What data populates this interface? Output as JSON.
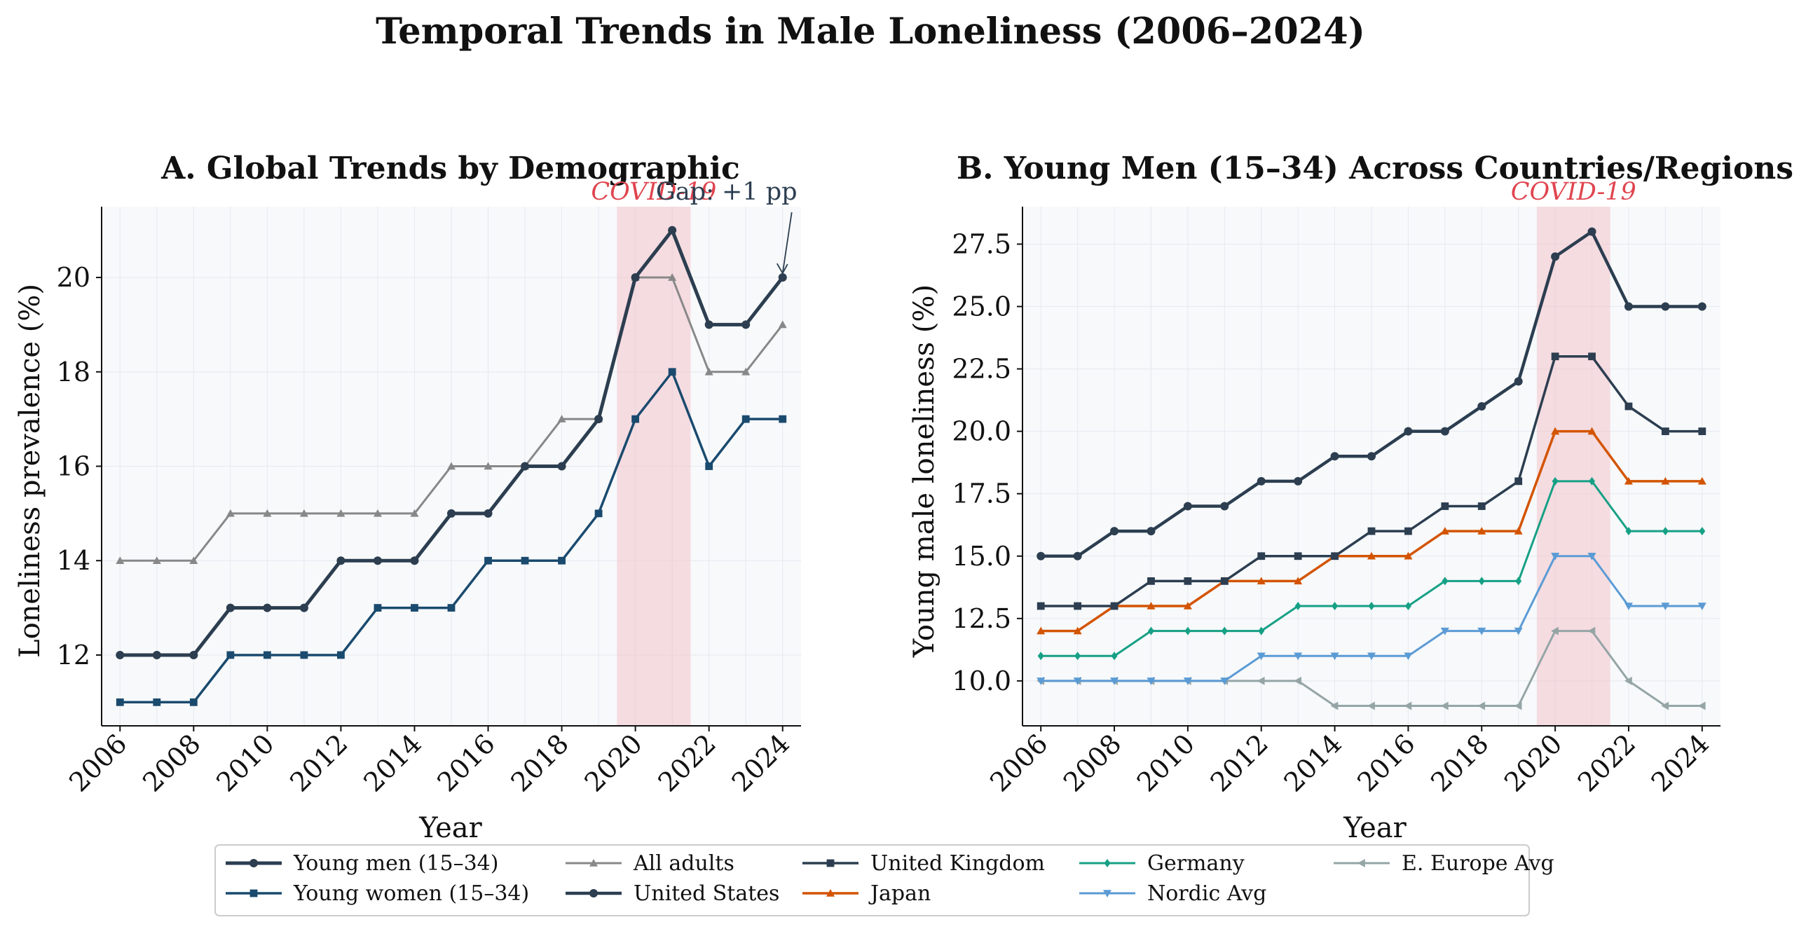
{
  "figure_title": "Temporal Trends in Male Loneliness (2006–2024)",
  "chart_data": [
    {
      "type": "line",
      "panel": "A",
      "title": "A. Global Trends by Demographic",
      "xlabel": "Year",
      "ylabel": "Loneliness prevalence (%)",
      "xlim": [
        2005.5,
        2024.5
      ],
      "ylim": [
        10.5,
        21.5
      ],
      "xticks": [
        2006,
        2008,
        2010,
        2012,
        2014,
        2016,
        2018,
        2020,
        2022,
        2024
      ],
      "yticks": [
        12,
        14,
        16,
        18,
        20
      ],
      "ytick_labels": [
        "12",
        "14",
        "16",
        "18",
        "20"
      ],
      "grid": true,
      "shaded_region": {
        "x0": 2019.5,
        "x1": 2021.5,
        "label": "COVID-19",
        "color": "#f3b4bd"
      },
      "annotation": {
        "text": "Gap: +1 pp",
        "x": 2024,
        "y": 20
      },
      "x": [
        2006,
        2007,
        2008,
        2009,
        2010,
        2011,
        2012,
        2013,
        2014,
        2015,
        2016,
        2017,
        2018,
        2019,
        2020,
        2021,
        2022,
        2023,
        2024
      ],
      "series": [
        {
          "name": "All adults",
          "color": "#888888",
          "marker": "triangle",
          "width": 3,
          "values": [
            14,
            14,
            14,
            15,
            15,
            15,
            15,
            15,
            15,
            16,
            16,
            16,
            17,
            17,
            20,
            20,
            18,
            18,
            19
          ]
        },
        {
          "name": "Young women (15–34)",
          "color": "#1a4a6e",
          "marker": "square",
          "width": 3.5,
          "values": [
            11,
            11,
            11,
            12,
            12,
            12,
            12,
            13,
            13,
            13,
            14,
            14,
            14,
            15,
            17,
            18,
            16,
            17,
            17
          ]
        },
        {
          "name": "Young men (15–34)",
          "color": "#2c3e50",
          "marker": "circle",
          "width": 5,
          "values": [
            12,
            12,
            12,
            13,
            13,
            13,
            14,
            14,
            14,
            15,
            15,
            16,
            16,
            17,
            20,
            21,
            19,
            19,
            20
          ]
        }
      ]
    },
    {
      "type": "line",
      "panel": "B",
      "title": "B. Young Men (15–34) Across Countries/Regions",
      "xlabel": "Year",
      "ylabel": "Young male loneliness (%)",
      "xlim": [
        2005.5,
        2024.5
      ],
      "ylim": [
        8.2,
        29.0
      ],
      "xticks": [
        2006,
        2008,
        2010,
        2012,
        2014,
        2016,
        2018,
        2020,
        2022,
        2024
      ],
      "yticks": [
        10,
        12.5,
        15,
        17.5,
        20,
        22.5,
        25,
        27.5
      ],
      "ytick_labels": [
        "10.0",
        "12.5",
        "15.0",
        "17.5",
        "20.0",
        "22.5",
        "25.0",
        "27.5"
      ],
      "grid": true,
      "shaded_region": {
        "x0": 2019.5,
        "x1": 2021.5,
        "label": "COVID-19",
        "color": "#f3b4bd"
      },
      "x": [
        2006,
        2007,
        2008,
        2009,
        2010,
        2011,
        2012,
        2013,
        2014,
        2015,
        2016,
        2017,
        2018,
        2019,
        2020,
        2021,
        2022,
        2023,
        2024
      ],
      "series": [
        {
          "name": "E. Europe Avg",
          "color": "#95a5a6",
          "marker": "tri-left",
          "width": 3,
          "values": [
            10,
            10,
            10,
            10,
            10,
            10,
            10,
            10,
            9,
            9,
            9,
            9,
            9,
            9,
            12,
            12,
            10,
            9,
            9
          ]
        },
        {
          "name": "Nordic Avg",
          "color": "#5b9bd5",
          "marker": "tri-down",
          "width": 3,
          "values": [
            10,
            10,
            10,
            10,
            10,
            10,
            11,
            11,
            11,
            11,
            11,
            12,
            12,
            12,
            15,
            15,
            13,
            13,
            13
          ]
        },
        {
          "name": "Germany",
          "color": "#16a085",
          "marker": "diamond",
          "width": 3,
          "values": [
            11,
            11,
            11,
            12,
            12,
            12,
            12,
            13,
            13,
            13,
            13,
            14,
            14,
            14,
            18,
            18,
            16,
            16,
            16
          ]
        },
        {
          "name": "Japan",
          "color": "#d35400",
          "marker": "triangle",
          "width": 3.5,
          "values": [
            12,
            12,
            13,
            13,
            13,
            14,
            14,
            14,
            15,
            15,
            15,
            16,
            16,
            16,
            20,
            20,
            18,
            18,
            18
          ]
        },
        {
          "name": "United Kingdom",
          "color": "#2c3e50",
          "marker": "square",
          "width": 3.5,
          "values": [
            13,
            13,
            13,
            14,
            14,
            14,
            15,
            15,
            15,
            16,
            16,
            17,
            17,
            18,
            23,
            23,
            21,
            20,
            20
          ]
        },
        {
          "name": "United States",
          "color": "#2c3e50",
          "marker": "circle",
          "width": 4.5,
          "values": [
            15,
            15,
            16,
            16,
            17,
            17,
            18,
            18,
            19,
            19,
            20,
            20,
            21,
            22,
            27,
            28,
            25,
            25,
            25
          ]
        }
      ]
    }
  ],
  "legend": {
    "placement": "bottom-center",
    "columns": [
      [
        {
          "label": "Young men (15–34)",
          "color": "#2c3e50",
          "marker": "circle",
          "width": 5
        },
        {
          "label": "Young women (15–34)",
          "color": "#1a4a6e",
          "marker": "square",
          "width": 3.5
        }
      ],
      [
        {
          "label": "All adults",
          "color": "#888888",
          "marker": "triangle",
          "width": 3
        },
        {
          "label": "United States",
          "color": "#2c3e50",
          "marker": "circle",
          "width": 4.5
        }
      ],
      [
        {
          "label": "United Kingdom",
          "color": "#2c3e50",
          "marker": "square",
          "width": 3.5
        },
        {
          "label": "Japan",
          "color": "#d35400",
          "marker": "triangle",
          "width": 3.5
        }
      ],
      [
        {
          "label": "Germany",
          "color": "#16a085",
          "marker": "diamond",
          "width": 3
        },
        {
          "label": "Nordic Avg",
          "color": "#5b9bd5",
          "marker": "tri-down",
          "width": 3
        }
      ],
      [
        {
          "label": "E. Europe Avg",
          "color": "#95a5a6",
          "marker": "tri-left",
          "width": 3
        }
      ]
    ]
  }
}
